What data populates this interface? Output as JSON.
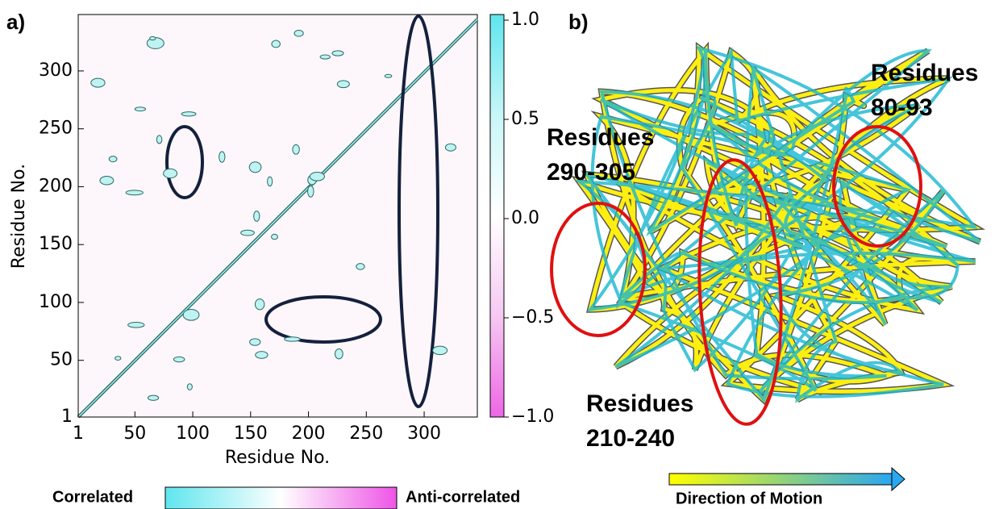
{
  "panel_a": {
    "label": "a)",
    "x_label": "Residue No.",
    "y_label": "Residue No.",
    "xticks": [
      "1",
      "50",
      "100",
      "150",
      "200",
      "250",
      "300"
    ],
    "yticks": [
      "1",
      "50",
      "100",
      "150",
      "200",
      "250",
      "300"
    ],
    "colorbar_ticks": [
      "1.0",
      "0.5",
      "0.0",
      "−0.5",
      "−1.0"
    ]
  },
  "panel_b": {
    "label": "b)",
    "annotations": [
      {
        "lines": [
          "Residues",
          "80-93"
        ]
      },
      {
        "lines": [
          "Residues",
          "290-305"
        ]
      },
      {
        "lines": [
          "Residues",
          "210-240"
        ]
      }
    ]
  },
  "legend": {
    "correlated": "Correlated",
    "anti_correlated": "Anti-correlated",
    "motion": "Direction of Motion"
  }
}
